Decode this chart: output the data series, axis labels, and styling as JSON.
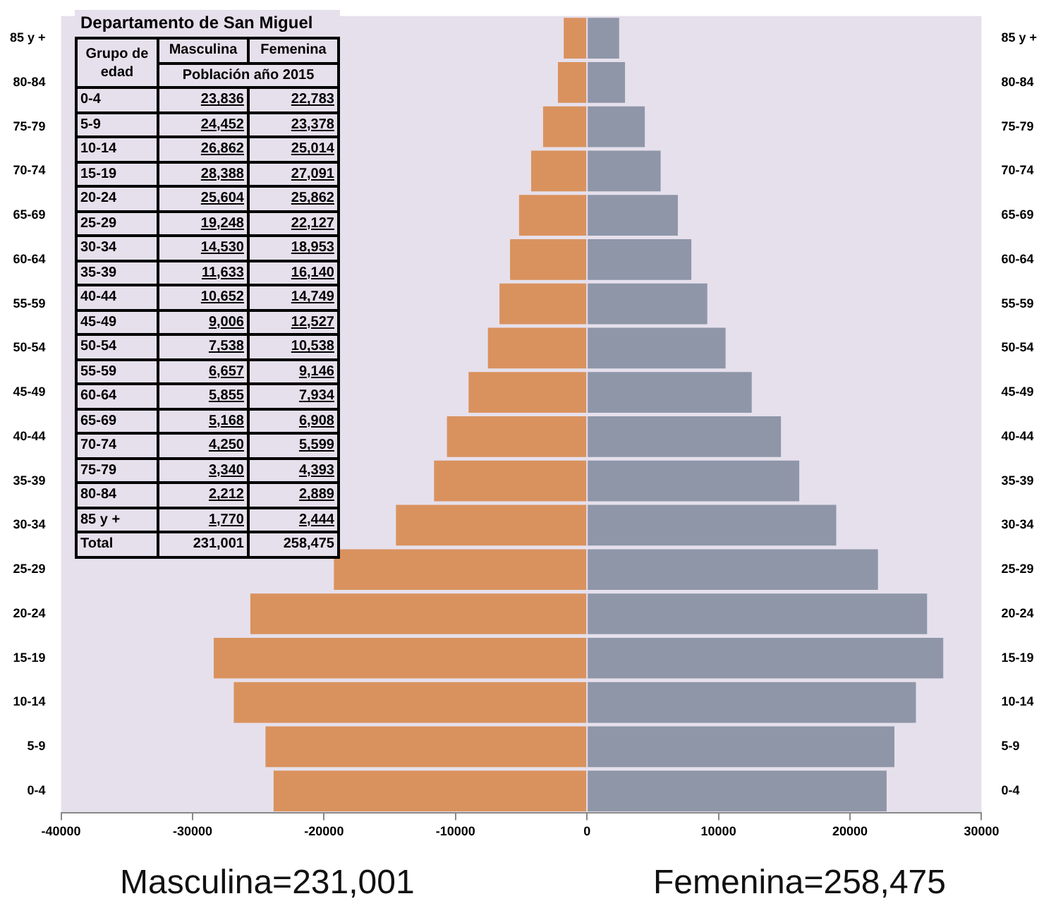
{
  "chart_data": [
    {
      "type": "bar",
      "orientation": "horizontal",
      "stacked": true,
      "categories": [
        "85 y +",
        "80-84",
        "75-79",
        "70-74",
        "65-69",
        "60-64",
        "55-59",
        "50-54",
        "45-49",
        "40-44",
        "35-39",
        "30-34",
        "25-29",
        "20-24",
        "15-19",
        "10-14",
        "5-9",
        "0-4"
      ],
      "series": [
        {
          "color": "#d9925e",
          "values": [
            -1770,
            -2212,
            -3340,
            -4250,
            -5168,
            -5855,
            -6657,
            -7538,
            -9006,
            -10652,
            -11633,
            -14530,
            -19248,
            -25604,
            -28388,
            -26862,
            -24452,
            -23836
          ]
        },
        {
          "color": "#8e96a8",
          "values": [
            2444,
            2889,
            4393,
            5599,
            6908,
            7934,
            9146,
            10538,
            12527,
            14749,
            16140,
            18953,
            22127,
            25862,
            27091,
            25014,
            23378,
            22783
          ]
        }
      ],
      "xlim": [
        -40000,
        30000
      ],
      "xticks": [
        -40000,
        -30000,
        -20000,
        -10000,
        0,
        10000,
        20000,
        30000
      ],
      "annotations": [
        "Masculina=231,001",
        "Femenina=258,475"
      ]
    },
    {
      "type": "other",
      "title": "Departamento de San Miguel",
      "annotations": [
        "Grupo de edad",
        "Masculina",
        "Femenina",
        "Población año 2015",
        "0-4",
        "23,836",
        "22,783",
        "5-9",
        "24,452",
        "23,378",
        "10-14",
        "26,862",
        "25,014",
        "15-19",
        "28,388",
        "27,091",
        "20-24",
        "25,604",
        "25,862",
        "25-29",
        "19,248",
        "22,127",
        "30-34",
        "14,530",
        "18,953",
        "35-39",
        "11,633",
        "16,140",
        "40-44",
        "10,652",
        "14,749",
        "45-49",
        "9,006",
        "12,527",
        "50-54",
        "7,538",
        "10,538",
        "55-59",
        "6,657",
        "9,146",
        "60-64",
        "5,855",
        "7,934",
        "65-69",
        "5,168",
        "6,908",
        "70-74",
        "4,250",
        "5,599",
        "75-79",
        "3,340",
        "4,393",
        "80-84",
        "2,212",
        "2,889",
        "85 y +",
        "1,770",
        "2,444",
        "Total",
        "231,001",
        "258,475"
      ]
    }
  ]
}
